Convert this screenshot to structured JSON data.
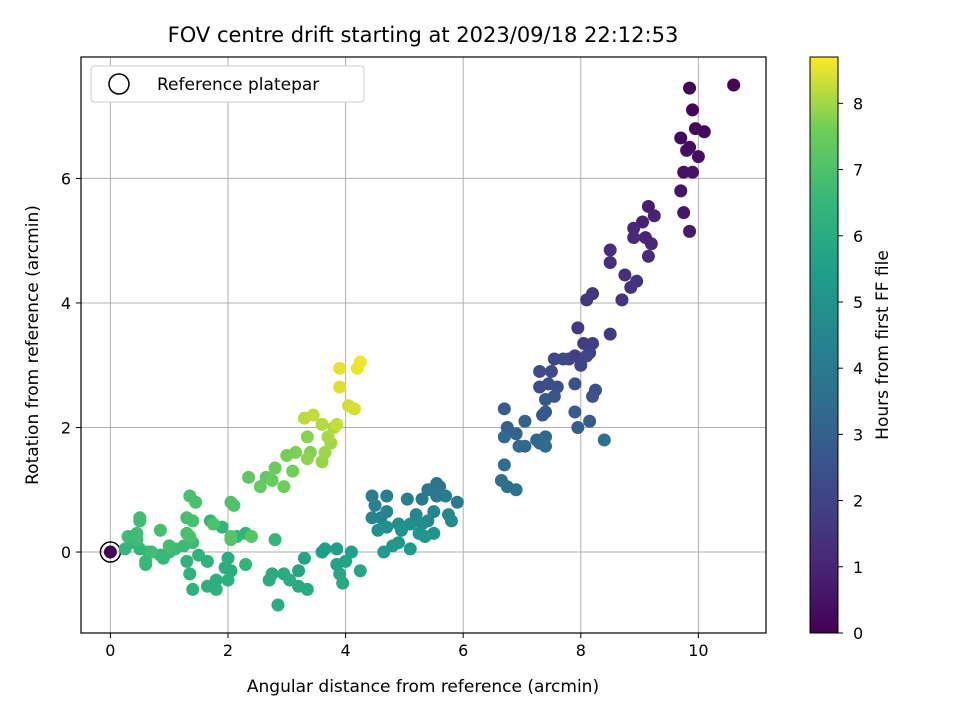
{
  "chart_data": {
    "type": "scatter",
    "title": "FOV centre drift starting at 2023/09/18 22:12:53",
    "xlabel": "Angular distance from reference (arcmin)",
    "ylabel": "Rotation from reference (arcmin)",
    "xlim": [
      -0.5,
      11.15
    ],
    "ylim": [
      -1.3,
      7.95
    ],
    "xticks": [
      0,
      2,
      4,
      6,
      8,
      10
    ],
    "yticks": [
      0,
      2,
      4,
      6
    ],
    "grid": true,
    "legend": {
      "placement": "upper-left",
      "entries": [
        "Reference platepar"
      ]
    },
    "reference_point": {
      "x": 0,
      "y": 0
    },
    "colorbar": {
      "label": "Hours from first FF file",
      "range": [
        0,
        8.7
      ],
      "ticks": [
        0,
        1,
        2,
        3,
        4,
        5,
        6,
        7,
        8
      ],
      "colormap": "viridis"
    },
    "points": [
      [
        10.6,
        7.5,
        0.05
      ],
      [
        9.85,
        7.45,
        0.1
      ],
      [
        9.9,
        7.1,
        0.15
      ],
      [
        9.95,
        6.8,
        0.2
      ],
      [
        10.1,
        6.75,
        0.22
      ],
      [
        9.7,
        6.65,
        0.25
      ],
      [
        9.85,
        6.5,
        0.3
      ],
      [
        10.0,
        6.35,
        0.35
      ],
      [
        9.8,
        6.45,
        0.4
      ],
      [
        9.75,
        6.1,
        0.45
      ],
      [
        9.9,
        6.1,
        0.5
      ],
      [
        9.7,
        5.8,
        0.55
      ],
      [
        9.75,
        5.45,
        0.6
      ],
      [
        9.85,
        5.15,
        0.7
      ],
      [
        9.15,
        5.55,
        0.8
      ],
      [
        9.05,
        5.3,
        0.9
      ],
      [
        9.25,
        5.4,
        0.95
      ],
      [
        9.1,
        5.05,
        1.0
      ],
      [
        9.2,
        4.95,
        1.05
      ],
      [
        8.9,
        5.2,
        1.1
      ],
      [
        8.9,
        5.05,
        1.15
      ],
      [
        9.15,
        4.75,
        1.2
      ],
      [
        8.5,
        4.85,
        1.25
      ],
      [
        8.5,
        4.65,
        1.3
      ],
      [
        8.75,
        4.45,
        1.35
      ],
      [
        8.95,
        4.35,
        1.4
      ],
      [
        8.85,
        4.25,
        1.45
      ],
      [
        8.7,
        4.05,
        1.5
      ],
      [
        8.2,
        4.15,
        1.55
      ],
      [
        8.1,
        4.05,
        1.6
      ],
      [
        7.95,
        3.6,
        1.65
      ],
      [
        8.5,
        3.5,
        1.7
      ],
      [
        8.05,
        3.35,
        1.75
      ],
      [
        8.2,
        3.35,
        1.8
      ],
      [
        7.9,
        3.15,
        1.85
      ],
      [
        8.15,
        3.2,
        1.9
      ],
      [
        7.8,
        3.1,
        1.95
      ],
      [
        8.0,
        3.0,
        2.0
      ],
      [
        8.1,
        3.15,
        2.05
      ],
      [
        7.55,
        3.1,
        2.1
      ],
      [
        7.7,
        3.1,
        2.15
      ],
      [
        7.3,
        2.9,
        2.2
      ],
      [
        7.5,
        2.9,
        2.25
      ],
      [
        7.3,
        2.65,
        2.3
      ],
      [
        7.45,
        2.7,
        2.35
      ],
      [
        7.6,
        2.65,
        2.4
      ],
      [
        7.9,
        2.7,
        2.45
      ],
      [
        8.25,
        2.6,
        2.5
      ],
      [
        8.2,
        2.5,
        2.55
      ],
      [
        7.55,
        2.5,
        2.6
      ],
      [
        7.4,
        2.45,
        2.65
      ],
      [
        7.4,
        2.25,
        2.7
      ],
      [
        7.35,
        2.2,
        2.75
      ],
      [
        7.9,
        2.25,
        2.8
      ],
      [
        8.15,
        2.1,
        2.85
      ],
      [
        7.95,
        2.0,
        2.9
      ],
      [
        6.7,
        2.3,
        2.95
      ],
      [
        6.75,
        2.0,
        3.0
      ],
      [
        6.9,
        1.9,
        3.05
      ],
      [
        7.05,
        2.1,
        3.1
      ],
      [
        7.25,
        1.8,
        3.15
      ],
      [
        7.4,
        1.85,
        3.2
      ],
      [
        7.3,
        1.75,
        3.25
      ],
      [
        7.05,
        1.7,
        3.3
      ],
      [
        6.95,
        1.7,
        3.35
      ],
      [
        6.7,
        1.85,
        3.4
      ],
      [
        7.4,
        1.7,
        3.45
      ],
      [
        8.4,
        1.8,
        3.5
      ],
      [
        6.7,
        1.4,
        3.55
      ],
      [
        6.65,
        1.15,
        3.6
      ],
      [
        6.75,
        1.05,
        3.65
      ],
      [
        6.9,
        1.0,
        3.7
      ],
      [
        5.55,
        1.1,
        3.8
      ],
      [
        5.6,
        1.05,
        3.85
      ],
      [
        5.4,
        1.0,
        3.9
      ],
      [
        5.55,
        0.9,
        3.95
      ],
      [
        5.3,
        0.85,
        4.0
      ],
      [
        5.7,
        0.9,
        4.05
      ],
      [
        5.9,
        0.8,
        4.1
      ],
      [
        5.05,
        0.85,
        4.15
      ],
      [
        4.45,
        0.9,
        4.2
      ],
      [
        4.7,
        0.9,
        4.25
      ],
      [
        4.5,
        0.75,
        4.3
      ],
      [
        4.7,
        0.65,
        4.35
      ],
      [
        4.6,
        0.55,
        4.4
      ],
      [
        4.45,
        0.55,
        4.45
      ],
      [
        5.2,
        0.6,
        4.5
      ],
      [
        5.5,
        0.65,
        4.55
      ],
      [
        5.75,
        0.6,
        4.6
      ],
      [
        5.8,
        0.5,
        4.65
      ],
      [
        5.4,
        0.5,
        4.7
      ],
      [
        5.3,
        0.45,
        4.75
      ],
      [
        5.1,
        0.45,
        4.8
      ],
      [
        4.9,
        0.45,
        4.85
      ],
      [
        4.7,
        0.4,
        4.9
      ],
      [
        4.55,
        0.35,
        4.95
      ],
      [
        4.95,
        0.35,
        5.0
      ],
      [
        5.25,
        0.3,
        5.05
      ],
      [
        5.5,
        0.3,
        5.1
      ],
      [
        4.9,
        0.15,
        5.15
      ],
      [
        4.8,
        0.1,
        5.2
      ],
      [
        5.35,
        0.25,
        5.25
      ],
      [
        5.1,
        0.05,
        5.3
      ],
      [
        4.65,
        0.0,
        5.35
      ],
      [
        3.65,
        0.05,
        5.4
      ],
      [
        3.85,
        0.05,
        5.45
      ],
      [
        3.6,
        0.0,
        5.5
      ],
      [
        4.1,
        0.0,
        5.55
      ],
      [
        4.0,
        -0.15,
        5.6
      ],
      [
        3.85,
        -0.2,
        5.65
      ],
      [
        3.3,
        -0.1,
        5.7
      ],
      [
        3.2,
        -0.3,
        5.75
      ],
      [
        4.25,
        -0.3,
        5.8
      ],
      [
        3.9,
        -0.35,
        5.85
      ],
      [
        3.95,
        -0.5,
        5.9
      ],
      [
        3.2,
        -0.55,
        5.92
      ],
      [
        3.35,
        -0.6,
        5.95
      ],
      [
        2.95,
        -0.35,
        6.0
      ],
      [
        2.75,
        -0.35,
        6.02
      ],
      [
        2.7,
        -0.45,
        6.04
      ],
      [
        3.05,
        -0.45,
        6.06
      ],
      [
        2.85,
        -0.85,
        6.08
      ],
      [
        2.0,
        -0.1,
        6.1
      ],
      [
        1.95,
        -0.25,
        6.12
      ],
      [
        2.05,
        -0.3,
        6.14
      ],
      [
        2.0,
        -0.45,
        6.16
      ],
      [
        1.8,
        -0.45,
        6.18
      ],
      [
        1.65,
        -0.55,
        6.2
      ],
      [
        1.8,
        -0.6,
        6.22
      ],
      [
        1.4,
        -0.6,
        6.24
      ],
      [
        1.35,
        -0.35,
        6.26
      ],
      [
        1.3,
        -0.15,
        6.28
      ],
      [
        1.5,
        -0.05,
        6.3
      ],
      [
        1.65,
        -0.15,
        6.32
      ],
      [
        2.3,
        -0.2,
        6.34
      ],
      [
        1.7,
        0.5,
        6.36
      ],
      [
        1.9,
        0.4,
        6.38
      ],
      [
        2.15,
        0.25,
        6.4
      ],
      [
        2.3,
        0.3,
        6.42
      ],
      [
        2.8,
        0.2,
        6.44
      ],
      [
        0.25,
        0.05,
        6.46
      ],
      [
        0.35,
        0.15,
        6.48
      ],
      [
        0.5,
        0.05,
        6.5
      ],
      [
        0.65,
        0.0,
        6.52
      ],
      [
        0.85,
        -0.05,
        6.54
      ],
      [
        0.9,
        -0.1,
        6.56
      ],
      [
        0.6,
        -0.2,
        6.58
      ],
      [
        0.6,
        -0.15,
        6.6
      ],
      [
        1.0,
        0.0,
        6.62
      ],
      [
        1.1,
        0.05,
        6.64
      ],
      [
        1.25,
        0.1,
        6.66
      ],
      [
        1.4,
        0.15,
        6.68
      ],
      [
        0.45,
        0.2,
        6.7
      ],
      [
        0.3,
        0.25,
        6.72
      ],
      [
        0.5,
        0.5,
        6.74
      ],
      [
        0.5,
        0.55,
        6.76
      ],
      [
        0.45,
        0.3,
        6.78
      ],
      [
        0.7,
        0.0,
        6.8
      ],
      [
        1.0,
        0.1,
        6.82
      ],
      [
        0.85,
        0.35,
        6.84
      ],
      [
        1.3,
        0.55,
        6.86
      ],
      [
        1.4,
        0.5,
        6.88
      ],
      [
        1.35,
        0.9,
        6.9
      ],
      [
        1.45,
        0.8,
        6.92
      ],
      [
        1.3,
        0.3,
        6.94
      ],
      [
        1.35,
        0.25,
        6.96
      ],
      [
        1.75,
        0.45,
        6.98
      ],
      [
        2.05,
        0.8,
        7.0
      ],
      [
        2.1,
        0.75,
        7.05
      ],
      [
        2.05,
        0.25,
        7.1
      ],
      [
        2.05,
        0.2,
        7.15
      ],
      [
        2.4,
        0.25,
        7.2
      ],
      [
        2.35,
        1.2,
        7.3
      ],
      [
        2.65,
        1.2,
        7.35
      ],
      [
        2.55,
        1.05,
        7.4
      ],
      [
        2.75,
        1.15,
        7.45
      ],
      [
        2.8,
        1.35,
        7.5
      ],
      [
        2.95,
        1.05,
        7.55
      ],
      [
        3.1,
        1.3,
        7.6
      ],
      [
        3.0,
        1.55,
        7.65
      ],
      [
        3.15,
        1.6,
        7.7
      ],
      [
        3.4,
        1.6,
        7.75
      ],
      [
        3.35,
        1.85,
        7.8
      ],
      [
        3.35,
        1.5,
        7.85
      ],
      [
        3.6,
        1.45,
        7.9
      ],
      [
        3.65,
        1.6,
        7.95
      ],
      [
        3.75,
        1.75,
        8.0
      ],
      [
        3.7,
        1.85,
        8.05
      ],
      [
        3.8,
        2.0,
        8.1
      ],
      [
        3.6,
        2.05,
        8.15
      ],
      [
        3.3,
        2.15,
        8.2
      ],
      [
        3.45,
        2.2,
        8.25
      ],
      [
        3.85,
        2.05,
        8.3
      ],
      [
        4.05,
        2.35,
        8.35
      ],
      [
        4.15,
        2.3,
        8.4
      ],
      [
        3.9,
        2.65,
        8.45
      ],
      [
        3.9,
        2.95,
        8.5
      ],
      [
        4.2,
        2.95,
        8.55
      ],
      [
        4.25,
        3.05,
        8.6
      ]
    ]
  }
}
